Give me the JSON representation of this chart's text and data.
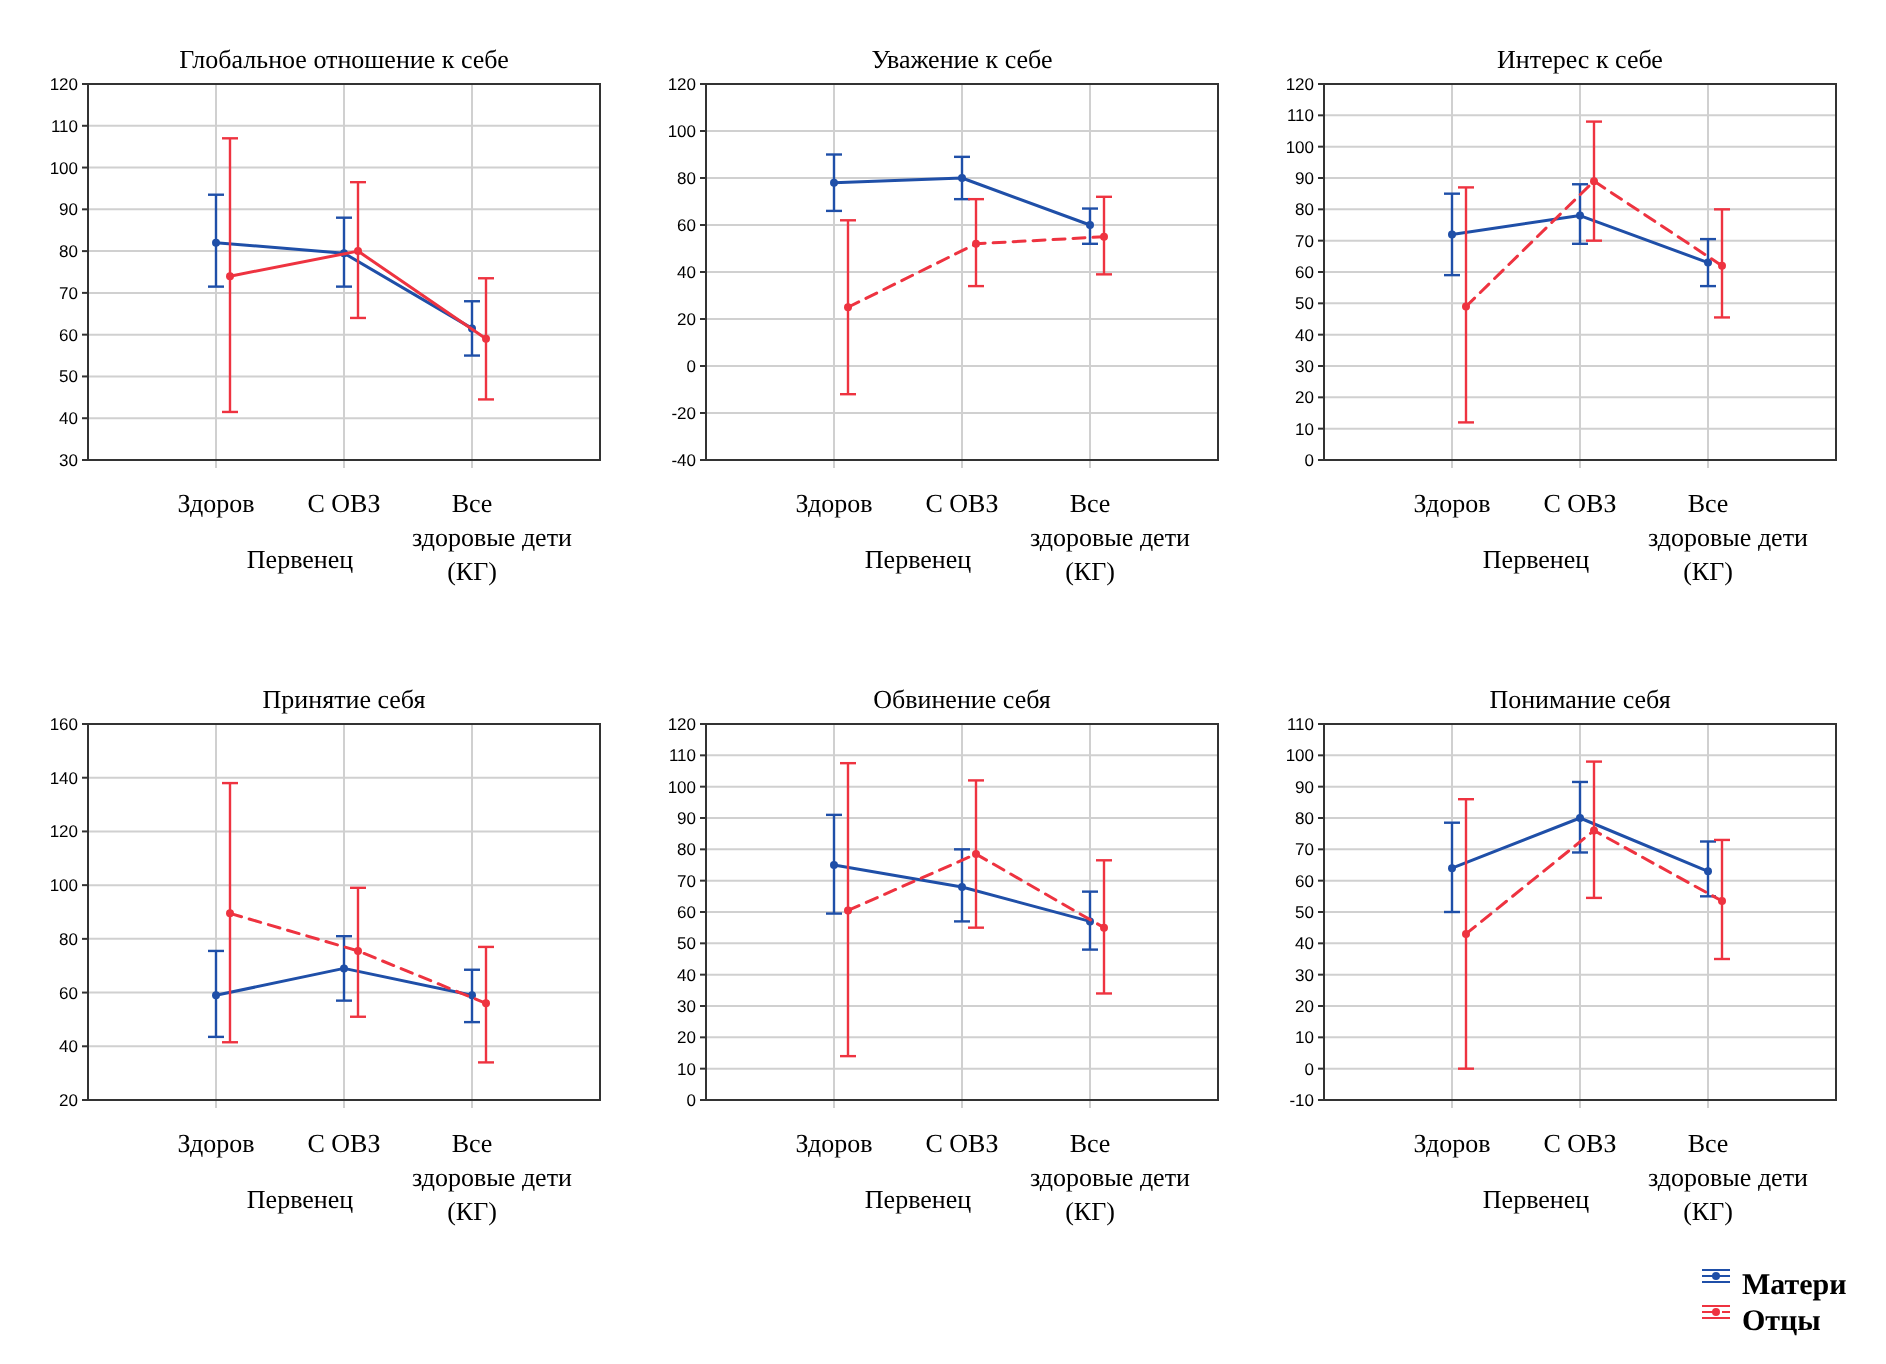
{
  "chart_data": [
    {
      "type": "line",
      "title": "Глобальное отношение к себе",
      "xlabel": "Первенец",
      "categories": [
        "Здоров",
        "С ОВЗ",
        "Все здоровые дети (КГ)"
      ],
      "ylim": [
        30,
        120
      ],
      "yticks": [
        30,
        40,
        50,
        60,
        70,
        80,
        90,
        100,
        110,
        120
      ],
      "grid": true,
      "legend": false,
      "marker": "circle",
      "series": [
        {
          "color": "#1f4fa8",
          "line_style": "solid",
          "values": [
            82,
            79.5,
            61.5
          ],
          "errors": [
            [
              71.5,
              93.5
            ],
            [
              71.5,
              88
            ],
            [
              55,
              68
            ]
          ]
        },
        {
          "color": "#ee3340",
          "line_style": "solid",
          "values": [
            74,
            80,
            59
          ],
          "errors": [
            [
              41.5,
              107
            ],
            [
              64,
              96.5
            ],
            [
              44.5,
              73.5
            ]
          ]
        }
      ]
    },
    {
      "type": "line",
      "title": "Уважение к себе",
      "xlabel": "Первенец",
      "categories": [
        "Здоров",
        "С ОВЗ",
        "Все здоровые дети (КГ)"
      ],
      "ylim": [
        -40,
        120
      ],
      "yticks": [
        -40,
        -20,
        0,
        20,
        40,
        60,
        80,
        100,
        120
      ],
      "grid": true,
      "legend": false,
      "marker": "circle",
      "series": [
        {
          "color": "#1f4fa8",
          "line_style": "solid",
          "values": [
            78,
            80,
            60
          ],
          "errors": [
            [
              66,
              90
            ],
            [
              71,
              89
            ],
            [
              52,
              67
            ]
          ]
        },
        {
          "color": "#ee3340",
          "line_style": "dashed",
          "values": [
            25,
            52,
            55
          ],
          "errors": [
            [
              -12,
              62
            ],
            [
              34,
              71
            ],
            [
              39,
              72
            ]
          ]
        }
      ]
    },
    {
      "type": "line",
      "title": "Интерес к себе",
      "xlabel": "Первенец",
      "categories": [
        "Здоров",
        "С ОВЗ",
        "Все здоровые дети (КГ)"
      ],
      "ylim": [
        0,
        120
      ],
      "yticks": [
        0,
        10,
        20,
        30,
        40,
        50,
        60,
        70,
        80,
        90,
        100,
        110,
        120
      ],
      "grid": true,
      "legend": false,
      "marker": "circle",
      "series": [
        {
          "color": "#1f4fa8",
          "line_style": "solid",
          "values": [
            72,
            78,
            63
          ],
          "errors": [
            [
              59,
              85
            ],
            [
              69,
              88
            ],
            [
              55.5,
              70.5
            ]
          ]
        },
        {
          "color": "#ee3340",
          "line_style": "dashed",
          "values": [
            49,
            89,
            62
          ],
          "errors": [
            [
              12,
              87
            ],
            [
              70,
              108
            ],
            [
              45.5,
              80
            ]
          ]
        }
      ]
    },
    {
      "type": "line",
      "title": "Принятие себя",
      "xlabel": "Первенец",
      "categories": [
        "Здоров",
        "С ОВЗ",
        "Все здоровые дети (КГ)"
      ],
      "ylim": [
        20,
        160
      ],
      "yticks": [
        20,
        40,
        60,
        80,
        100,
        120,
        140,
        160
      ],
      "grid": true,
      "legend": false,
      "marker": "circle",
      "series": [
        {
          "color": "#1f4fa8",
          "line_style": "solid",
          "values": [
            59,
            69,
            59
          ],
          "errors": [
            [
              43.5,
              75.5
            ],
            [
              57,
              81
            ],
            [
              49,
              68.5
            ]
          ]
        },
        {
          "color": "#ee3340",
          "line_style": "dashed",
          "values": [
            89.5,
            75.5,
            56
          ],
          "errors": [
            [
              41.5,
              138
            ],
            [
              51,
              99
            ],
            [
              34,
              77
            ]
          ]
        }
      ]
    },
    {
      "type": "line",
      "title": "Обвинение себя",
      "xlabel": "Первенец",
      "categories": [
        "Здоров",
        "С ОВЗ",
        "Все здоровые дети (КГ)"
      ],
      "ylim": [
        0,
        120
      ],
      "yticks": [
        0,
        10,
        20,
        30,
        40,
        50,
        60,
        70,
        80,
        90,
        100,
        110,
        120
      ],
      "grid": true,
      "legend": false,
      "marker": "circle",
      "series": [
        {
          "color": "#1f4fa8",
          "line_style": "solid",
          "values": [
            75,
            68,
            57
          ],
          "errors": [
            [
              59.5,
              91
            ],
            [
              57,
              80
            ],
            [
              48,
              66.5
            ]
          ]
        },
        {
          "color": "#ee3340",
          "line_style": "dashed",
          "values": [
            60.5,
            78.5,
            55
          ],
          "errors": [
            [
              14,
              107.5
            ],
            [
              55,
              102
            ],
            [
              34,
              76.5
            ]
          ]
        }
      ]
    },
    {
      "type": "line",
      "title": "Понимание себя",
      "xlabel": "Первенец",
      "categories": [
        "Здоров",
        "С ОВЗ",
        "Все здоровые дети (КГ)"
      ],
      "ylim": [
        -10,
        110
      ],
      "yticks": [
        -10,
        0,
        10,
        20,
        30,
        40,
        50,
        60,
        70,
        80,
        90,
        100,
        110
      ],
      "grid": true,
      "legend": "bottom right",
      "marker": "circle",
      "series": [
        {
          "name": "Матери",
          "color": "#1f4fa8",
          "line_style": "solid",
          "values": [
            64,
            80,
            63
          ],
          "errors": [
            [
              50,
              78.5
            ],
            [
              69,
              91.5
            ],
            [
              55,
              72.5
            ]
          ]
        },
        {
          "name": "Отцы",
          "color": "#ee3340",
          "line_style": "dashed",
          "values": [
            43,
            76,
            53.5
          ],
          "errors": [
            [
              0,
              86
            ],
            [
              54.5,
              98
            ],
            [
              35,
              73
            ]
          ]
        }
      ]
    }
  ]
}
